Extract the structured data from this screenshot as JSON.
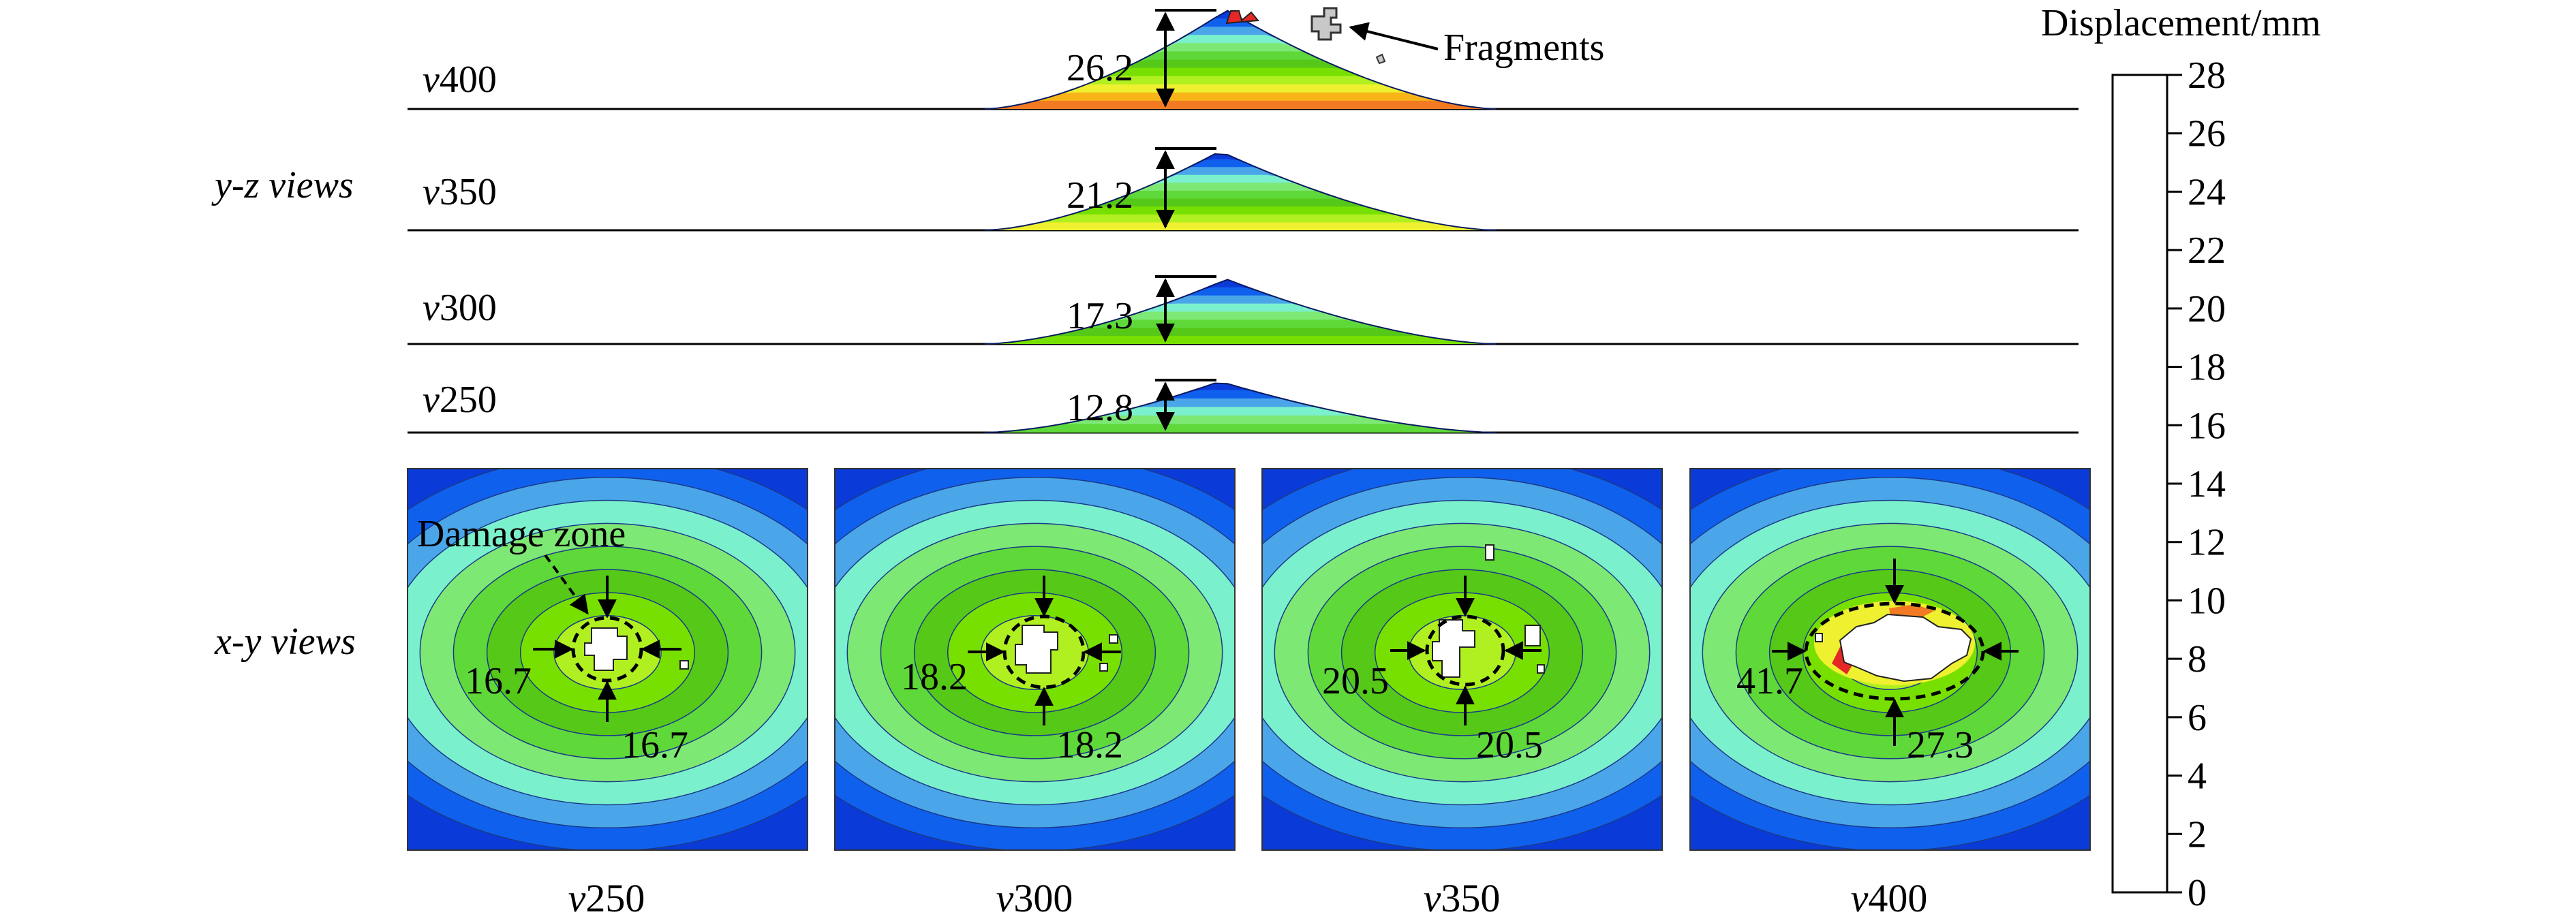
{
  "palette": [
    "#0a3bd9",
    "#1060ee",
    "#4aa6e8",
    "#7bf0cc",
    "#7ee874",
    "#5fd83a",
    "#55c818",
    "#78e000",
    "#b0f020",
    "#eef030",
    "#f8b418",
    "#f27a22",
    "#ec4424",
    "#e52826"
  ],
  "colorbar": {
    "title": "Displacement/mm",
    "ticks": [
      "28",
      "26",
      "24",
      "22",
      "20",
      "18",
      "16",
      "14",
      "12",
      "10",
      "8",
      "6",
      "4",
      "2",
      "0"
    ]
  },
  "annotations": {
    "fragments": "Fragments",
    "damage_zone": "Damage zone"
  },
  "row_labels": {
    "yz": "y-z views",
    "xy": "x-y views"
  },
  "profiles": [
    {
      "case": "v400",
      "height": "26.2",
      "fill": 0.96
    },
    {
      "case": "v350",
      "height": "21.2",
      "fill": 0.76
    },
    {
      "case": "v300",
      "height": "17.3",
      "fill": 0.62
    },
    {
      "case": "v250",
      "height": "12.8",
      "fill": 0.46
    }
  ],
  "plan_views": [
    {
      "case": "v250",
      "width": "16.7",
      "length": "16.7"
    },
    {
      "case": "v300",
      "width": "18.2",
      "length": "18.2"
    },
    {
      "case": "v350",
      "width": "20.5",
      "length": "20.5"
    },
    {
      "case": "v400",
      "width": "41.7",
      "length": "27.3"
    }
  ]
}
